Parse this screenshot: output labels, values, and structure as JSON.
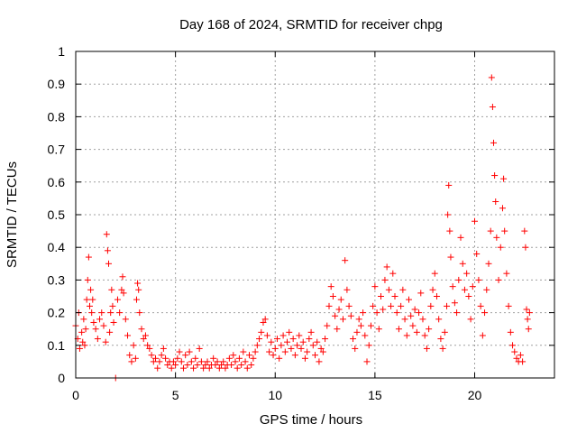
{
  "chart_data": {
    "type": "scatter",
    "title": "Day 168 of 2024, SRMTID for receiver chpg",
    "xlabel": "GPS time / hours",
    "ylabel": "SRMTID / TECUs",
    "xlim": [
      0,
      24
    ],
    "ylim": [
      0,
      1
    ],
    "x_ticks": [
      0,
      5,
      10,
      15,
      20
    ],
    "x_tick_labels": [
      "0",
      "5",
      "10",
      "15",
      "20"
    ],
    "y_ticks": [
      0,
      0.1,
      0.2,
      0.3,
      0.4,
      0.5,
      0.6,
      0.7,
      0.8,
      0.9,
      1
    ],
    "y_tick_labels": [
      "0",
      "0.1",
      "0.2",
      "0.3",
      "0.4",
      "0.5",
      "0.6",
      "0.7",
      "0.8",
      "0.9",
      "1"
    ],
    "grid": true,
    "marker": "plus",
    "color": "#ff0000",
    "series": [
      {
        "name": "SRMTID",
        "points": [
          [
            0.0,
            0.16
          ],
          [
            0.1,
            0.12
          ],
          [
            0.15,
            0.2
          ],
          [
            0.2,
            0.09
          ],
          [
            0.3,
            0.14
          ],
          [
            0.35,
            0.11
          ],
          [
            0.4,
            0.18
          ],
          [
            0.45,
            0.1
          ],
          [
            0.5,
            0.15
          ],
          [
            0.55,
            0.24
          ],
          [
            0.6,
            0.3
          ],
          [
            0.65,
            0.37
          ],
          [
            0.7,
            0.22
          ],
          [
            0.75,
            0.27
          ],
          [
            0.8,
            0.2
          ],
          [
            0.85,
            0.24
          ],
          [
            0.9,
            0.17
          ],
          [
            1.0,
            0.15
          ],
          [
            1.1,
            0.12
          ],
          [
            1.2,
            0.18
          ],
          [
            1.3,
            0.2
          ],
          [
            1.4,
            0.16
          ],
          [
            1.5,
            0.11
          ],
          [
            1.55,
            0.44
          ],
          [
            1.6,
            0.39
          ],
          [
            1.65,
            0.35
          ],
          [
            1.7,
            0.14
          ],
          [
            1.75,
            0.2
          ],
          [
            1.8,
            0.27
          ],
          [
            1.85,
            0.22
          ],
          [
            1.9,
            0.17
          ],
          [
            2.0,
            0.0
          ],
          [
            2.1,
            0.24
          ],
          [
            2.2,
            0.2
          ],
          [
            2.3,
            0.27
          ],
          [
            2.35,
            0.31
          ],
          [
            2.4,
            0.26
          ],
          [
            2.5,
            0.18
          ],
          [
            2.6,
            0.13
          ],
          [
            2.7,
            0.07
          ],
          [
            2.8,
            0.05
          ],
          [
            2.9,
            0.1
          ],
          [
            3.0,
            0.06
          ],
          [
            3.05,
            0.24
          ],
          [
            3.1,
            0.29
          ],
          [
            3.15,
            0.27
          ],
          [
            3.2,
            0.2
          ],
          [
            3.3,
            0.15
          ],
          [
            3.4,
            0.12
          ],
          [
            3.5,
            0.13
          ],
          [
            3.6,
            0.1
          ],
          [
            3.7,
            0.09
          ],
          [
            3.8,
            0.07
          ],
          [
            3.9,
            0.05
          ],
          [
            4.0,
            0.06
          ],
          [
            4.1,
            0.03
          ],
          [
            4.2,
            0.05
          ],
          [
            4.3,
            0.07
          ],
          [
            4.4,
            0.09
          ],
          [
            4.5,
            0.06
          ],
          [
            4.6,
            0.04
          ],
          [
            4.7,
            0.05
          ],
          [
            4.8,
            0.03
          ],
          [
            4.9,
            0.05
          ],
          [
            5.0,
            0.04
          ],
          [
            5.1,
            0.06
          ],
          [
            5.2,
            0.08
          ],
          [
            5.3,
            0.05
          ],
          [
            5.4,
            0.03
          ],
          [
            5.5,
            0.07
          ],
          [
            5.6,
            0.04
          ],
          [
            5.7,
            0.08
          ],
          [
            5.8,
            0.05
          ],
          [
            5.9,
            0.03
          ],
          [
            6.0,
            0.06
          ],
          [
            6.1,
            0.04
          ],
          [
            6.2,
            0.09
          ],
          [
            6.3,
            0.05
          ],
          [
            6.4,
            0.03
          ],
          [
            6.5,
            0.04
          ],
          [
            6.6,
            0.05
          ],
          [
            6.7,
            0.03
          ],
          [
            6.8,
            0.04
          ],
          [
            6.9,
            0.06
          ],
          [
            7.0,
            0.04
          ],
          [
            7.1,
            0.05
          ],
          [
            7.2,
            0.03
          ],
          [
            7.3,
            0.04
          ],
          [
            7.4,
            0.05
          ],
          [
            7.5,
            0.03
          ],
          [
            7.6,
            0.04
          ],
          [
            7.7,
            0.06
          ],
          [
            7.8,
            0.04
          ],
          [
            7.9,
            0.07
          ],
          [
            8.0,
            0.05
          ],
          [
            8.1,
            0.03
          ],
          [
            8.2,
            0.06
          ],
          [
            8.3,
            0.04
          ],
          [
            8.4,
            0.08
          ],
          [
            8.5,
            0.05
          ],
          [
            8.6,
            0.03
          ],
          [
            8.7,
            0.07
          ],
          [
            8.8,
            0.04
          ],
          [
            8.9,
            0.06
          ],
          [
            9.0,
            0.08
          ],
          [
            9.1,
            0.1
          ],
          [
            9.2,
            0.12
          ],
          [
            9.3,
            0.14
          ],
          [
            9.4,
            0.17
          ],
          [
            9.5,
            0.18
          ],
          [
            9.6,
            0.13
          ],
          [
            9.7,
            0.08
          ],
          [
            9.8,
            0.11
          ],
          [
            9.9,
            0.07
          ],
          [
            10.0,
            0.09
          ],
          [
            10.1,
            0.12
          ],
          [
            10.2,
            0.06
          ],
          [
            10.3,
            0.1
          ],
          [
            10.4,
            0.13
          ],
          [
            10.5,
            0.08
          ],
          [
            10.6,
            0.11
          ],
          [
            10.7,
            0.14
          ],
          [
            10.8,
            0.09
          ],
          [
            10.9,
            0.12
          ],
          [
            11.0,
            0.07
          ],
          [
            11.1,
            0.1
          ],
          [
            11.2,
            0.13
          ],
          [
            11.3,
            0.09
          ],
          [
            11.4,
            0.11
          ],
          [
            11.5,
            0.06
          ],
          [
            11.6,
            0.08
          ],
          [
            11.7,
            0.12
          ],
          [
            11.8,
            0.14
          ],
          [
            11.9,
            0.1
          ],
          [
            12.0,
            0.07
          ],
          [
            12.1,
            0.11
          ],
          [
            12.2,
            0.05
          ],
          [
            12.3,
            0.09
          ],
          [
            12.4,
            0.08
          ],
          [
            12.5,
            0.12
          ],
          [
            12.6,
            0.16
          ],
          [
            12.7,
            0.22
          ],
          [
            12.8,
            0.28
          ],
          [
            12.9,
            0.25
          ],
          [
            13.0,
            0.19
          ],
          [
            13.1,
            0.15
          ],
          [
            13.2,
            0.21
          ],
          [
            13.3,
            0.24
          ],
          [
            13.4,
            0.18
          ],
          [
            13.5,
            0.36
          ],
          [
            13.6,
            0.27
          ],
          [
            13.7,
            0.22
          ],
          [
            13.8,
            0.19
          ],
          [
            13.9,
            0.12
          ],
          [
            14.0,
            0.09
          ],
          [
            14.1,
            0.14
          ],
          [
            14.2,
            0.18
          ],
          [
            14.3,
            0.16
          ],
          [
            14.4,
            0.2
          ],
          [
            14.5,
            0.13
          ],
          [
            14.6,
            0.05
          ],
          [
            14.7,
            0.1
          ],
          [
            14.8,
            0.16
          ],
          [
            14.9,
            0.22
          ],
          [
            15.0,
            0.28
          ],
          [
            15.1,
            0.2
          ],
          [
            15.2,
            0.15
          ],
          [
            15.3,
            0.25
          ],
          [
            15.4,
            0.21
          ],
          [
            15.5,
            0.3
          ],
          [
            15.6,
            0.34
          ],
          [
            15.7,
            0.27
          ],
          [
            15.8,
            0.22
          ],
          [
            15.9,
            0.32
          ],
          [
            16.0,
            0.25
          ],
          [
            16.1,
            0.2
          ],
          [
            16.2,
            0.15
          ],
          [
            16.3,
            0.22
          ],
          [
            16.4,
            0.27
          ],
          [
            16.5,
            0.18
          ],
          [
            16.6,
            0.13
          ],
          [
            16.7,
            0.24
          ],
          [
            16.8,
            0.19
          ],
          [
            16.9,
            0.16
          ],
          [
            17.0,
            0.21
          ],
          [
            17.1,
            0.14
          ],
          [
            17.2,
            0.2
          ],
          [
            17.3,
            0.26
          ],
          [
            17.4,
            0.18
          ],
          [
            17.5,
            0.13
          ],
          [
            17.6,
            0.09
          ],
          [
            17.7,
            0.15
          ],
          [
            17.8,
            0.22
          ],
          [
            17.9,
            0.27
          ],
          [
            18.0,
            0.32
          ],
          [
            18.1,
            0.25
          ],
          [
            18.2,
            0.18
          ],
          [
            18.3,
            0.12
          ],
          [
            18.4,
            0.09
          ],
          [
            18.5,
            0.14
          ],
          [
            18.6,
            0.22
          ],
          [
            18.65,
            0.5
          ],
          [
            18.7,
            0.59
          ],
          [
            18.75,
            0.45
          ],
          [
            18.8,
            0.37
          ],
          [
            18.9,
            0.28
          ],
          [
            19.0,
            0.23
          ],
          [
            19.1,
            0.2
          ],
          [
            19.2,
            0.3
          ],
          [
            19.3,
            0.43
          ],
          [
            19.4,
            0.35
          ],
          [
            19.5,
            0.27
          ],
          [
            19.6,
            0.32
          ],
          [
            19.7,
            0.25
          ],
          [
            19.8,
            0.18
          ],
          [
            19.9,
            0.28
          ],
          [
            20.0,
            0.48
          ],
          [
            20.1,
            0.38
          ],
          [
            20.2,
            0.3
          ],
          [
            20.3,
            0.22
          ],
          [
            20.4,
            0.13
          ],
          [
            20.5,
            0.2
          ],
          [
            20.6,
            0.27
          ],
          [
            20.7,
            0.35
          ],
          [
            20.8,
            0.45
          ],
          [
            20.85,
            0.92
          ],
          [
            20.9,
            0.83
          ],
          [
            20.95,
            0.72
          ],
          [
            21.0,
            0.62
          ],
          [
            21.05,
            0.54
          ],
          [
            21.1,
            0.43
          ],
          [
            21.2,
            0.3
          ],
          [
            21.3,
            0.4
          ],
          [
            21.4,
            0.52
          ],
          [
            21.45,
            0.61
          ],
          [
            21.5,
            0.45
          ],
          [
            21.6,
            0.32
          ],
          [
            21.7,
            0.22
          ],
          [
            21.8,
            0.14
          ],
          [
            21.9,
            0.1
          ],
          [
            22.0,
            0.08
          ],
          [
            22.1,
            0.06
          ],
          [
            22.2,
            0.05
          ],
          [
            22.3,
            0.07
          ],
          [
            22.4,
            0.05
          ],
          [
            22.5,
            0.45
          ],
          [
            22.55,
            0.4
          ],
          [
            22.6,
            0.21
          ],
          [
            22.65,
            0.18
          ],
          [
            22.7,
            0.15
          ],
          [
            22.75,
            0.2
          ]
        ]
      }
    ]
  }
}
